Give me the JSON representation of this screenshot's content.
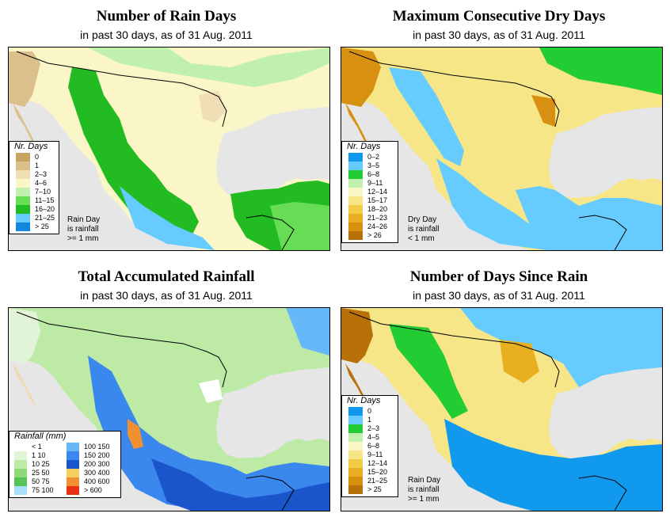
{
  "panels": [
    {
      "id": "rain-days",
      "title": "Number of Rain Days",
      "subtitle": "in past 30 days, as of  31 Aug. 2011",
      "legend_title": "Nr. Days",
      "legend": [
        {
          "label": "0",
          "color": "#c8a45e"
        },
        {
          "label": "1",
          "color": "#dcc08c"
        },
        {
          "label": "2–3",
          "color": "#f0dfb6"
        },
        {
          "label": "4–6",
          "color": "#fbf6c8"
        },
        {
          "label": "7–10",
          "color": "#bff0b0"
        },
        {
          "label": "11–15",
          "color": "#66dd55"
        },
        {
          "label": "16–20",
          "color": "#22bb22"
        },
        {
          "label": "21–25",
          "color": "#66ccff"
        },
        {
          "label": "> 25",
          "color": "#1188dd"
        }
      ],
      "note": [
        "Rain Day",
        "is rainfall",
        ">= 1 mm"
      ]
    },
    {
      "id": "dry-days",
      "title": "Maximum Consecutive Dry Days",
      "subtitle": "in past 30 days, as of  31 Aug. 2011",
      "legend_title": "Nr. Days",
      "legend": [
        {
          "label": "0–2",
          "color": "#1199ee"
        },
        {
          "label": "3–5",
          "color": "#66ccff"
        },
        {
          "label": "6–8",
          "color": "#22cc33"
        },
        {
          "label": "9–11",
          "color": "#bff0b0"
        },
        {
          "label": "12–14",
          "color": "#fbf6c8"
        },
        {
          "label": "15–17",
          "color": "#f7e688"
        },
        {
          "label": "18–20",
          "color": "#f2cc44"
        },
        {
          "label": "21–23",
          "color": "#e8b020"
        },
        {
          "label": "24–26",
          "color": "#d89010"
        },
        {
          "label": "> 26",
          "color": "#b87008"
        }
      ],
      "note": [
        "Dry Day",
        "is rainfall",
        "< 1 mm"
      ]
    },
    {
      "id": "rainfall",
      "title": "Total Accumulated Rainfall",
      "subtitle": "in past 30 days, as of  31 Aug. 2011",
      "legend_title": "Rainfall (mm)",
      "legend": [
        {
          "label": "< 1",
          "color": "#ffffff"
        },
        {
          "label": "1   10",
          "color": "#e2f4d8"
        },
        {
          "label": "10   25",
          "color": "#bdeaa4"
        },
        {
          "label": "25   50",
          "color": "#8ed878"
        },
        {
          "label": "50   75",
          "color": "#55c455"
        },
        {
          "label": "75  100",
          "color": "#a8e0ff"
        },
        {
          "label": "100  150",
          "color": "#66b8f8"
        },
        {
          "label": "150  200",
          "color": "#3a88ee"
        },
        {
          "label": "200  300",
          "color": "#1a55cc"
        },
        {
          "label": "300  400",
          "color": "#f5d060"
        },
        {
          "label": "400  600",
          "color": "#f09030"
        },
        {
          "label": "> 600",
          "color": "#e83010"
        }
      ]
    },
    {
      "id": "since-rain",
      "title": "Number of Days Since Rain",
      "subtitle": "in past 30 days, as of  31 Aug. 2011",
      "legend_title": "Nr. Days",
      "legend": [
        {
          "label": "0",
          "color": "#1199ee"
        },
        {
          "label": "1",
          "color": "#66ccff"
        },
        {
          "label": "2–3",
          "color": "#22cc33"
        },
        {
          "label": "4–5",
          "color": "#bff0b0"
        },
        {
          "label": "6–8",
          "color": "#fbf6c8"
        },
        {
          "label": "9–11",
          "color": "#f7e688"
        },
        {
          "label": "12–14",
          "color": "#f2cc44"
        },
        {
          "label": "15–20",
          "color": "#e8b020"
        },
        {
          "label": "21–25",
          "color": "#d89010"
        },
        {
          "label": "> 25",
          "color": "#b87008"
        }
      ],
      "note": [
        "Rain Day",
        "is rainfall",
        ">= 1 mm"
      ]
    }
  ],
  "colors": {
    "ocean": "#e6e6e6",
    "border": "#000000"
  }
}
